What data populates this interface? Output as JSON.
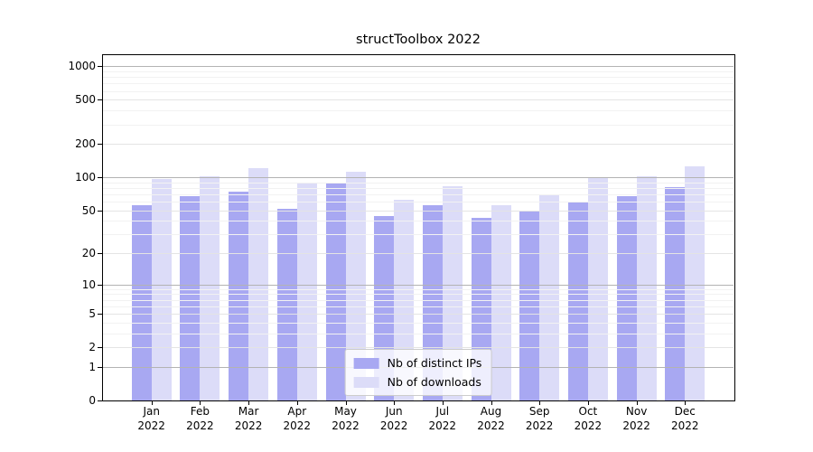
{
  "chart_data": {
    "type": "bar",
    "title": "structToolbox 2022",
    "categories": [
      "Jan 2022",
      "Feb 2022",
      "Mar 2022",
      "Apr 2022",
      "May 2022",
      "Jun 2022",
      "Jul 2022",
      "Aug 2022",
      "Sep 2022",
      "Oct 2022",
      "Nov 2022",
      "Dec 2022"
    ],
    "series": [
      {
        "name": "Nb of distinct IPs",
        "color": "#a8a8f2",
        "values": [
          56,
          67,
          74,
          52,
          90,
          44,
          56,
          43,
          50,
          60,
          67,
          81
        ]
      },
      {
        "name": "Nb of downloads",
        "color": "#dcdcf8",
        "values": [
          96,
          103,
          122,
          88,
          113,
          62,
          83,
          56,
          69,
          100,
          102,
          126
        ]
      }
    ],
    "xlabel": "",
    "ylabel": "",
    "yscale": "log1p",
    "ylim": [
      0,
      1260
    ],
    "y_ticks": [
      0,
      1,
      2,
      5,
      10,
      20,
      50,
      100,
      200,
      500,
      1000
    ],
    "y_minor_ticks": [
      3,
      4,
      6,
      7,
      8,
      9,
      30,
      40,
      60,
      70,
      80,
      90,
      300,
      400,
      600,
      700,
      800,
      900
    ],
    "grid": true,
    "legend_position": "lower center"
  },
  "colors": {
    "background": "#ffffff",
    "axis": "#000000",
    "grid_power10": "#b3b3b3",
    "grid_major": "#e4e4e4",
    "grid_minor": "#f2f2f2",
    "legend_border": "#cccccc",
    "legend_bg": "rgba(255,255,255,0.8)"
  }
}
